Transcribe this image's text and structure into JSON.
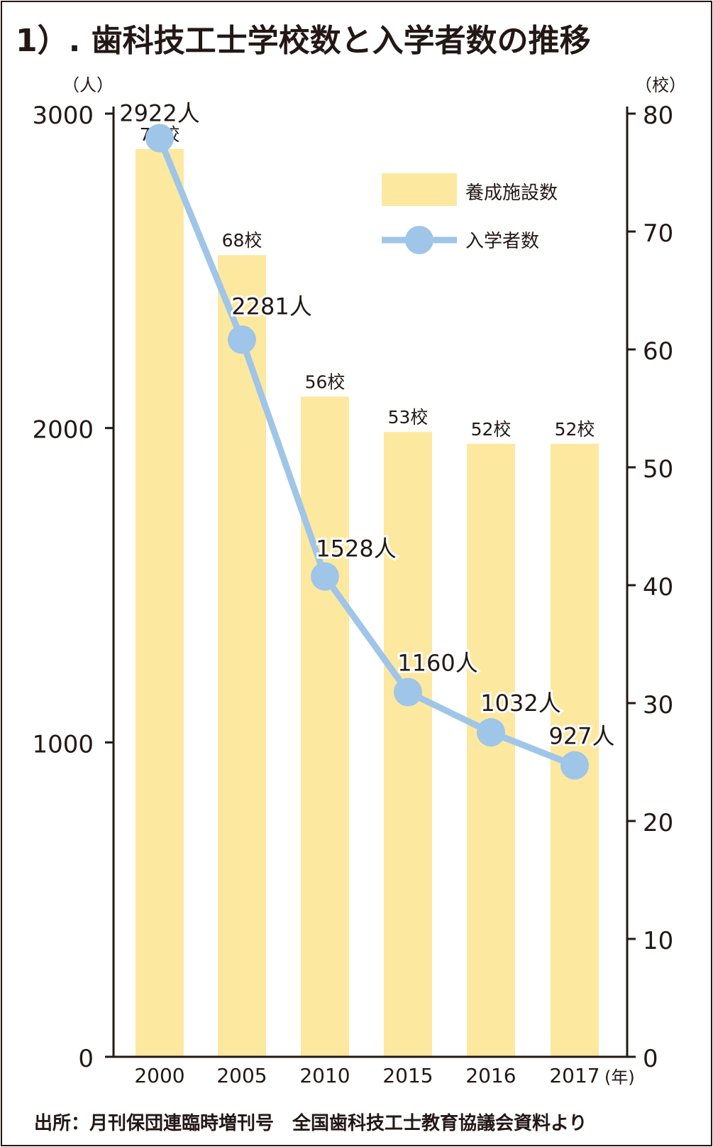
{
  "chart_data": {
    "type": "bar+line",
    "title": "1）. 歯科技工士学校数と入学者数の推移",
    "categories": [
      "2000",
      "2005",
      "2010",
      "2015",
      "2016",
      "2017"
    ],
    "x_unit": "(年)",
    "left_axis": {
      "unit": "（人）",
      "ylim": [
        0,
        3000
      ],
      "ticks": [
        0,
        1000,
        2000,
        3000
      ]
    },
    "right_axis": {
      "unit": "（校）",
      "ylim": [
        0,
        80
      ],
      "ticks": [
        0,
        10,
        20,
        30,
        40,
        50,
        60,
        70,
        80
      ]
    },
    "series": [
      {
        "name": "養成施設数",
        "type": "bar",
        "axis": "right",
        "values": [
          77,
          68,
          56,
          53,
          52,
          52
        ],
        "labels": [
          "77校",
          "68校",
          "56校",
          "53校",
          "52校",
          "52校"
        ],
        "color": "#fde8a0"
      },
      {
        "name": "入学者数",
        "type": "line",
        "axis": "left",
        "values": [
          2922,
          2281,
          1528,
          1160,
          1032,
          927
        ],
        "labels": [
          "2922人",
          "2281人",
          "1528人",
          "1160人",
          "1032人",
          "927人"
        ],
        "color": "#9fc5e8"
      }
    ],
    "legend": {
      "position": "top-right",
      "entries": [
        "養成施設数",
        "入学者数"
      ]
    },
    "source": "出所：月刊保団連臨時増刊号　全国歯科技工士教育協議会資料より"
  }
}
